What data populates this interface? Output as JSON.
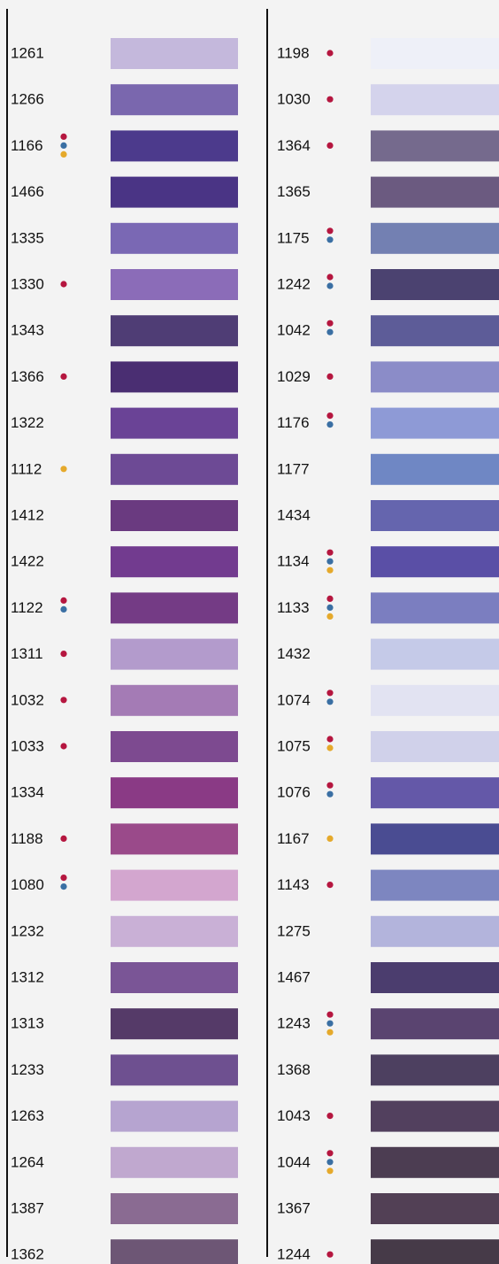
{
  "columns": [
    {
      "items": [
        {
          "code": "1261",
          "swatch": "#c4b8dc",
          "dots": []
        },
        {
          "code": "1266",
          "swatch": "#7a67ae",
          "dots": []
        },
        {
          "code": "1166",
          "swatch": "#4c3a8c",
          "dots": [
            "#b5163f",
            "#3a6fa3",
            "#e5a92b"
          ]
        },
        {
          "code": "1466",
          "swatch": "#4a3485",
          "dots": []
        },
        {
          "code": "1335",
          "swatch": "#7a68b4",
          "dots": []
        },
        {
          "code": "1330",
          "swatch": "#8b6cb8",
          "dots": [
            "#b5163f"
          ]
        },
        {
          "code": "1343",
          "swatch": "#4f3d75",
          "dots": []
        },
        {
          "code": "1366",
          "swatch": "#4a2e72",
          "dots": [
            "#b5163f"
          ]
        },
        {
          "code": "1322",
          "swatch": "#6a4396",
          "dots": []
        },
        {
          "code": "1112",
          "swatch": "#6d4a95",
          "dots": [
            "#e5a92b"
          ]
        },
        {
          "code": "1412",
          "swatch": "#6a3a80",
          "dots": []
        },
        {
          "code": "1422",
          "swatch": "#723b8f",
          "dots": []
        },
        {
          "code": "1122",
          "swatch": "#743b85",
          "dots": [
            "#b5163f",
            "#3a6fa3"
          ]
        },
        {
          "code": "1311",
          "swatch": "#b39bcc",
          "dots": [
            "#b5163f"
          ]
        },
        {
          "code": "1032",
          "swatch": "#a47bb5",
          "dots": [
            "#b5163f"
          ]
        },
        {
          "code": "1033",
          "swatch": "#7d4a90",
          "dots": [
            "#b5163f"
          ]
        },
        {
          "code": "1334",
          "swatch": "#8a3a85",
          "dots": []
        },
        {
          "code": "1188",
          "swatch": "#9a4a8a",
          "dots": [
            "#b5163f"
          ]
        },
        {
          "code": "1080",
          "swatch": "#d3a6cf",
          "dots": [
            "#b5163f",
            "#3a6fa3"
          ]
        },
        {
          "code": "1232",
          "swatch": "#c9b0d6",
          "dots": []
        },
        {
          "code": "1312",
          "swatch": "#7a5596",
          "dots": []
        },
        {
          "code": "1313",
          "swatch": "#553a68",
          "dots": []
        },
        {
          "code": "1233",
          "swatch": "#6e5090",
          "dots": []
        },
        {
          "code": "1263",
          "swatch": "#b6a4d0",
          "dots": []
        },
        {
          "code": "1264",
          "swatch": "#c0a8cf",
          "dots": []
        },
        {
          "code": "1387",
          "swatch": "#8a6b92",
          "dots": []
        },
        {
          "code": "1362",
          "swatch": "#6d5675",
          "dots": []
        }
      ]
    },
    {
      "items": [
        {
          "code": "1198",
          "swatch": "#eef0f8",
          "dots": [
            "#b5163f"
          ]
        },
        {
          "code": "1030",
          "swatch": "#d4d3ec",
          "dots": [
            "#b5163f"
          ]
        },
        {
          "code": "1364",
          "swatch": "#756a8d",
          "dots": [
            "#b5163f"
          ]
        },
        {
          "code": "1365",
          "swatch": "#6b5a80",
          "dots": []
        },
        {
          "code": "1175",
          "swatch": "#7380b2",
          "dots": [
            "#b5163f",
            "#3a6fa3"
          ]
        },
        {
          "code": "1242",
          "swatch": "#4b4270",
          "dots": [
            "#b5163f",
            "#3a6fa3"
          ]
        },
        {
          "code": "1042",
          "swatch": "#5d5c98",
          "dots": [
            "#b5163f",
            "#3a6fa3"
          ]
        },
        {
          "code": "1029",
          "swatch": "#8b8cc8",
          "dots": [
            "#b5163f"
          ]
        },
        {
          "code": "1176",
          "swatch": "#8e9ad6",
          "dots": [
            "#b5163f",
            "#3a6fa3"
          ]
        },
        {
          "code": "1177",
          "swatch": "#6f87c4",
          "dots": []
        },
        {
          "code": "1434",
          "swatch": "#6565ae",
          "dots": []
        },
        {
          "code": "1134",
          "swatch": "#5a4fa6",
          "dots": [
            "#b5163f",
            "#3a6fa3",
            "#e5a92b"
          ]
        },
        {
          "code": "1133",
          "swatch": "#7b7ec0",
          "dots": [
            "#b5163f",
            "#3a6fa3",
            "#e5a92b"
          ]
        },
        {
          "code": "1432",
          "swatch": "#c5cae8",
          "dots": []
        },
        {
          "code": "1074",
          "swatch": "#e2e3f2",
          "dots": [
            "#b5163f",
            "#3a6fa3"
          ]
        },
        {
          "code": "1075",
          "swatch": "#d0d1ea",
          "dots": [
            "#b5163f",
            "#e5a92b"
          ]
        },
        {
          "code": "1076",
          "swatch": "#6458a8",
          "dots": [
            "#b5163f",
            "#3a6fa3"
          ]
        },
        {
          "code": "1167",
          "swatch": "#4a4c92",
          "dots": [
            "#e5a92b"
          ]
        },
        {
          "code": "1143",
          "swatch": "#7d86c0",
          "dots": [
            "#b5163f"
          ]
        },
        {
          "code": "1275",
          "swatch": "#b3b4dc",
          "dots": []
        },
        {
          "code": "1467",
          "swatch": "#4b3d6e",
          "dots": []
        },
        {
          "code": "1243",
          "swatch": "#5a4470",
          "dots": [
            "#b5163f",
            "#3a6fa3",
            "#e5a92b"
          ]
        },
        {
          "code": "1368",
          "swatch": "#4d4060",
          "dots": []
        },
        {
          "code": "1043",
          "swatch": "#52405e",
          "dots": [
            "#b5163f"
          ]
        },
        {
          "code": "1044",
          "swatch": "#4c3d52",
          "dots": [
            "#b5163f",
            "#3a6fa3",
            "#e5a92b"
          ]
        },
        {
          "code": "1367",
          "swatch": "#524055",
          "dots": []
        },
        {
          "code": "1244",
          "swatch": "#463a48",
          "dots": [
            "#b5163f"
          ]
        }
      ]
    }
  ]
}
